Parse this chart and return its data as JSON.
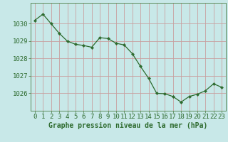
{
  "x": [
    0,
    1,
    2,
    3,
    4,
    5,
    6,
    7,
    8,
    9,
    10,
    11,
    12,
    13,
    14,
    15,
    16,
    17,
    18,
    19,
    20,
    21,
    22,
    23
  ],
  "y": [
    1030.2,
    1030.55,
    1030.0,
    1029.45,
    1029.0,
    1028.82,
    1028.75,
    1028.65,
    1029.2,
    1029.15,
    1028.88,
    1028.78,
    1028.28,
    1027.55,
    1026.87,
    1026.0,
    1025.98,
    1025.82,
    1025.5,
    1025.82,
    1025.95,
    1026.15,
    1026.55,
    1026.35
  ],
  "line_color": "#2d6a2d",
  "marker_color": "#2d6a2d",
  "bg_color": "#c8e8e8",
  "plot_bg_color": "#c8e8e8",
  "grid_color": "#c8a0a0",
  "ylabel_ticks": [
    1026,
    1027,
    1028,
    1029,
    1030
  ],
  "xlabel": "Graphe pression niveau de la mer (hPa)",
  "ylim": [
    1025.0,
    1031.2
  ],
  "xlim": [
    -0.5,
    23.5
  ],
  "label_fontsize": 7,
  "tick_fontsize": 6.5
}
